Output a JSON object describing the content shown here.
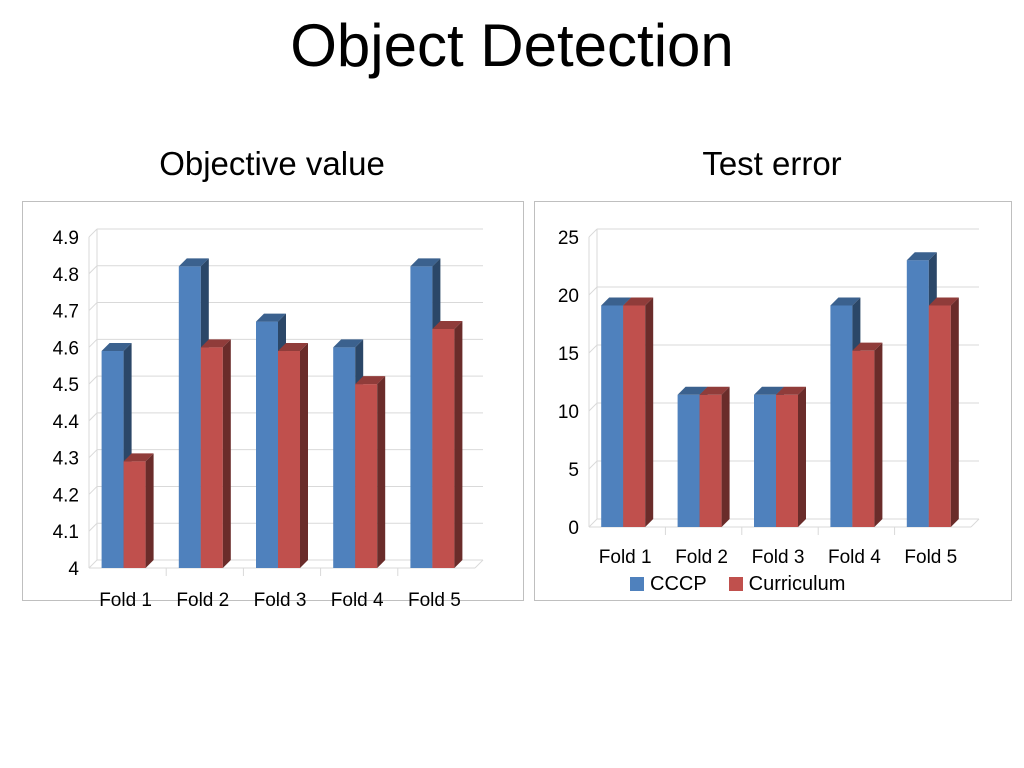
{
  "slide_title": "Object Detection",
  "chart_data": [
    {
      "type": "bar",
      "title": "Objective value",
      "categories": [
        "Fold 1",
        "Fold 2",
        "Fold 3",
        "Fold 4",
        "Fold 5"
      ],
      "series": [
        {
          "name": "CCCP",
          "values": [
            4.59,
            4.82,
            4.67,
            4.6,
            4.82
          ],
          "color": "#4f81bd"
        },
        {
          "name": "Curriculum",
          "values": [
            4.29,
            4.6,
            4.59,
            4.5,
            4.65
          ],
          "color": "#c0504d"
        }
      ],
      "ylim": [
        4,
        4.9
      ],
      "yticks": [
        "4",
        "4.1",
        "4.2",
        "4.3",
        "4.4",
        "4.5",
        "4.6",
        "4.7",
        "4.8",
        "4.9"
      ],
      "grid": true,
      "style": "3d",
      "legend": "none"
    },
    {
      "type": "bar",
      "title": "Test error",
      "categories": [
        "Fold 1",
        "Fold 2",
        "Fold 3",
        "Fold 4",
        "Fold 5"
      ],
      "series": [
        {
          "name": "CCCP",
          "values": [
            19.1,
            11.4,
            11.4,
            19.1,
            23
          ],
          "color": "#4f81bd"
        },
        {
          "name": "Curriculum",
          "values": [
            19.1,
            11.4,
            11.4,
            15.2,
            19.1
          ],
          "color": "#c0504d"
        }
      ],
      "ylim": [
        0,
        25
      ],
      "yticks": [
        "0",
        "5",
        "10",
        "15",
        "20",
        "25"
      ],
      "grid": true,
      "style": "3d",
      "legend": "bottom"
    }
  ]
}
